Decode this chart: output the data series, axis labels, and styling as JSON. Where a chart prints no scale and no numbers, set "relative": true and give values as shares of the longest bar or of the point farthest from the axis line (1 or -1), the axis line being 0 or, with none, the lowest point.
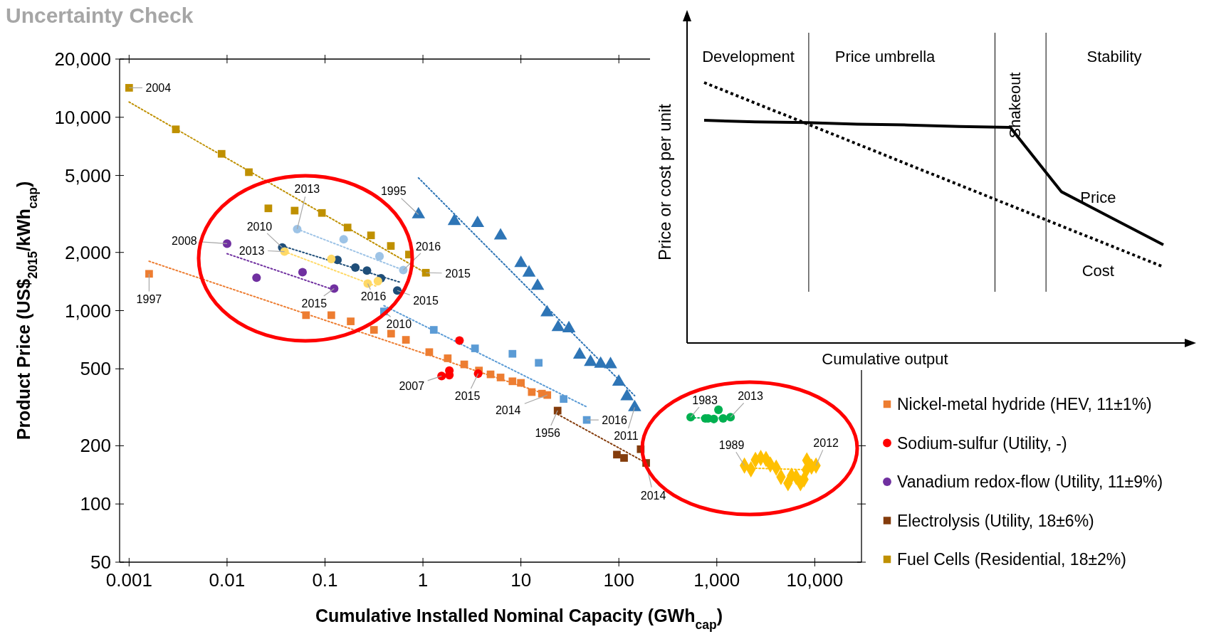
{
  "chart_data": [
    {
      "type": "scatter",
      "title": "Uncertainty Check",
      "xlabel": "Cumulative Installed Nominal Capacity (GWh$_{cap}$)",
      "ylabel": "Product Price (US$$_{2015}$/kWh$_{cap}$)",
      "log": "xy",
      "xlim": [
        0.0008,
        30000
      ],
      "ylim": [
        50,
        20000
      ],
      "xticks": [
        0.001,
        0.01,
        0.1,
        1,
        10,
        100,
        {
          "value": 1000,
          "label": "1,000"
        },
        {
          "value": 10000,
          "label": "10,000"
        }
      ],
      "yticks": [
        50,
        100,
        200,
        500,
        {
          "value": 1000,
          "label": "1,000"
        },
        {
          "value": 2000,
          "label": "2,000"
        },
        {
          "value": 5000,
          "label": "5,000"
        },
        {
          "value": 10000,
          "label": "10,000"
        },
        {
          "value": 20000,
          "label": "20,000"
        }
      ],
      "legend": "right",
      "series": [
        {
          "type": "scatter",
          "name": "Nickel-metal hydride (HEV, 11±1%)",
          "color": "#ed7d31",
          "marker": "square",
          "x": [
            0.0016,
            0.064,
            0.116,
            0.183,
            0.316,
            0.473,
            0.67,
            1.16,
            1.79,
            2.64,
            3.73,
            4.9,
            6.2,
            8.2,
            10,
            12.9,
            16.4,
            18.6
          ],
          "values": [
            1550,
            947,
            947,
            880,
            795,
            760,
            706,
            610,
            567,
            527,
            490,
            468,
            451,
            431,
            423,
            379,
            372,
            366
          ]
        },
        {
          "type": "scatter",
          "name": "Sodium-sulfur (Utility, -)",
          "color": "#ff0000",
          "marker": "circle",
          "x": [
            1.55,
            1.86,
            1.86,
            2.36,
            3.66
          ],
          "values": [
            459,
            490,
            464,
            700,
            472
          ]
        },
        {
          "type": "scatter",
          "name": "Vanadium redox-flow (Utility, 11±9%)",
          "color": "#7030a0",
          "marker": "circle",
          "x": [
            0.01,
            0.02,
            0.059,
            0.124
          ],
          "values": [
            2220,
            1480,
            1580,
            1300
          ]
        },
        {
          "type": "scatter",
          "name": "Electrolysis (Utility, 18±6%)",
          "color": "#843c0c",
          "marker": "square",
          "x": [
            23.7,
            95.5,
            113,
            167,
            190
          ],
          "values": [
            304,
            180,
            173,
            192,
            163
          ]
        },
        {
          "type": "scatter",
          "name": "Fuel Cells (Residential, 18±2%)",
          "color": "#bf9000",
          "marker": "square",
          "x": [
            0.001,
            0.003,
            0.0088,
            0.0167,
            0.0264,
            0.049,
            0.093,
            0.17,
            0.295,
            0.47,
            0.72,
            1.07
          ],
          "values": [
            14200,
            8660,
            6470,
            5200,
            3380,
            3290,
            3200,
            2690,
            2450,
            2160,
            1950,
            1570
          ]
        },
        {
          "type": "scatter",
          "color": "#9dc3e6",
          "marker": "circle",
          "x": [
            0.052,
            0.155,
            0.36,
            0.63
          ],
          "values": [
            2640,
            2340,
            1910,
            1620
          ]
        },
        {
          "type": "scatter",
          "color": "#1f4e79",
          "marker": "circle",
          "x": [
            0.0366,
            0.134,
            0.204,
            0.268,
            0.373,
            0.547
          ],
          "values": [
            2120,
            1830,
            1670,
            1610,
            1470,
            1270
          ]
        },
        {
          "type": "scatter",
          "color": "#ffd966",
          "marker": "circle",
          "x": [
            0.0386,
            0.116,
            0.273,
            0.347
          ],
          "values": [
            2020,
            1850,
            1380,
            1420
          ]
        },
        {
          "type": "scatter",
          "color": "#2e75b6",
          "marker": "triangle",
          "x": [
            0.9,
            2.09,
            3.61,
            6.2,
            10,
            12.1,
            14.8,
            18.5,
            24,
            30.9,
            39.8,
            51.4,
            65.2,
            82.2,
            99.8,
            121,
            145
          ],
          "values": [
            3140,
            2900,
            2830,
            2440,
            1760,
            1570,
            1340,
            977,
            820,
            809,
            591,
            542,
            530,
            527,
            428,
            360,
            316
          ]
        },
        {
          "type": "scatter",
          "color": "#5b9bd5",
          "marker": "square",
          "x": [
            0.4,
            1.29,
            3.4,
            8.2,
            15.2,
            27.3,
            47
          ],
          "values": [
            990,
            795,
            638,
            598,
            537,
            349,
            272
          ]
        },
        {
          "type": "scatter",
          "color": "#00b050",
          "marker": "circle",
          "x": [
            541,
            763,
            815,
            933,
            1040,
            1160,
            1380
          ],
          "values": [
            281,
            277,
            277,
            275,
            307,
            277,
            281
          ]
        },
        {
          "type": "scatter",
          "color": "#ffc000",
          "marker": "diamond",
          "x": [
            1915,
            2230,
            2480,
            2810,
            3180,
            3520,
            4040,
            4520,
            5330,
            5790,
            6460,
            7150,
            7760,
            8190,
            8300,
            9270,
            10300
          ],
          "values": [
            158,
            151,
            169,
            173,
            171,
            160,
            154,
            138,
            128,
            140,
            138,
            128,
            134,
            150,
            168,
            156,
            158
          ]
        },
        {
          "type": "line",
          "color": "#ed7d31",
          "line_style": "dotted",
          "marker": "none",
          "x": [
            0.0016,
            19
          ],
          "values": [
            1800,
            366
          ]
        },
        {
          "type": "line",
          "color": "#7030a0",
          "line_style": "dotted",
          "marker": "none",
          "x": [
            0.01,
            0.124
          ],
          "values": [
            1970,
            1280
          ]
        },
        {
          "type": "line",
          "color": "#843c0c",
          "line_style": "dotted",
          "marker": "none",
          "x": [
            23.7,
            190
          ],
          "values": [
            291,
            163
          ]
        },
        {
          "type": "line",
          "color": "#bf9000",
          "line_style": "dotted",
          "marker": "none",
          "x": [
            0.001,
            1.18
          ],
          "values": [
            12000,
            1520
          ]
        },
        {
          "type": "line",
          "color": "#9dc3e6",
          "line_style": "dotted",
          "marker": "none",
          "x": [
            0.052,
            0.63
          ],
          "values": [
            2640,
            1620
          ]
        },
        {
          "type": "line",
          "color": "#1f4e79",
          "line_style": "dotted",
          "marker": "none",
          "x": [
            0.0366,
            0.59
          ],
          "values": [
            2160,
            1400
          ]
        },
        {
          "type": "line",
          "color": "#ffd966",
          "line_style": "dotted",
          "marker": "none",
          "x": [
            0.0386,
            0.33
          ],
          "values": [
            2020,
            1340
          ]
        },
        {
          "type": "line",
          "color": "#2e75b6",
          "line_style": "dotted",
          "marker": "none",
          "x": [
            0.9,
            145
          ],
          "values": [
            4860,
            363
          ]
        },
        {
          "type": "line",
          "color": "#5b9bd5",
          "line_style": "dotted",
          "marker": "none",
          "x": [
            0.4,
            48
          ],
          "values": [
            1060,
            316
          ]
        },
        {
          "type": "line",
          "color": "#00b050",
          "line_style": "dotted",
          "marker": "none",
          "x": [
            541,
            1160
          ],
          "values": [
            279,
            279
          ]
        },
        {
          "type": "line",
          "color": "#ffc000",
          "line_style": "dotted",
          "marker": "none",
          "x": [
            2480,
            9800
          ],
          "values": [
            153,
            150
          ]
        }
      ],
      "annotations": [
        {
          "text": "2004",
          "x": 0.001,
          "y": 14200
        },
        {
          "text": "2015",
          "x": 1.07,
          "y": 1570
        },
        {
          "text": "2013",
          "x": 0.052,
          "y": 2640
        },
        {
          "text": "2016",
          "x": 0.63,
          "y": 1620
        },
        {
          "text": "2010",
          "x": 0.0366,
          "y": 2120
        },
        {
          "text": "2015",
          "x": 0.547,
          "y": 1270
        },
        {
          "text": "2013",
          "x": 0.0386,
          "y": 2020
        },
        {
          "text": "2016",
          "x": 0.273,
          "y": 1380
        },
        {
          "text": "2008",
          "x": 0.01,
          "y": 2220
        },
        {
          "text": "2015",
          "x": 0.124,
          "y": 1300
        },
        {
          "text": "1997",
          "x": 0.0016,
          "y": 1550
        },
        {
          "text": "2014",
          "x": 18.6,
          "y": 366
        },
        {
          "text": "2010",
          "x": 0.4,
          "y": 990
        },
        {
          "text": "2016",
          "x": 47,
          "y": 272
        },
        {
          "text": "1995",
          "x": 0.9,
          "y": 3140
        },
        {
          "text": "2011",
          "x": 145,
          "y": 316
        },
        {
          "text": "2007",
          "x": 1.55,
          "y": 459
        },
        {
          "text": "2015",
          "x": 3.66,
          "y": 472
        },
        {
          "text": "1956",
          "x": 23.7,
          "y": 304
        },
        {
          "text": "2014",
          "x": 190,
          "y": 163
        },
        {
          "text": "1983",
          "x": 541,
          "y": 281
        },
        {
          "text": "2013",
          "x": 1380,
          "y": 281
        },
        {
          "text": "1989",
          "x": 1915,
          "y": 158
        },
        {
          "text": "2012",
          "x": 10300,
          "y": 158
        }
      ]
    },
    {
      "type": "line",
      "relative": true,
      "xlabel": "Cumulative output",
      "ylabel": "Price or cost per unit",
      "categories": [
        null,
        null,
        null,
        null,
        null,
        null,
        null,
        null,
        null,
        null
      ],
      "series": [
        {
          "name": "Price",
          "color": "#000000",
          "line_style": "solid",
          "values": [
            0.855,
            0.849,
            0.846,
            0.84,
            0.837,
            0.831,
            0.828,
            0.581,
            0.479,
            0.377
          ]
        },
        {
          "name": "Cost",
          "color": "#000000",
          "line_style": "dotted",
          "values": [
            1,
            0.921,
            0.843,
            0.764,
            0.685,
            0.607,
            0.528,
            0.449,
            0.371,
            0.292
          ]
        }
      ],
      "annotations": [
        "Development",
        "Price umbrella",
        "Shakeout",
        "Stability"
      ]
    }
  ]
}
